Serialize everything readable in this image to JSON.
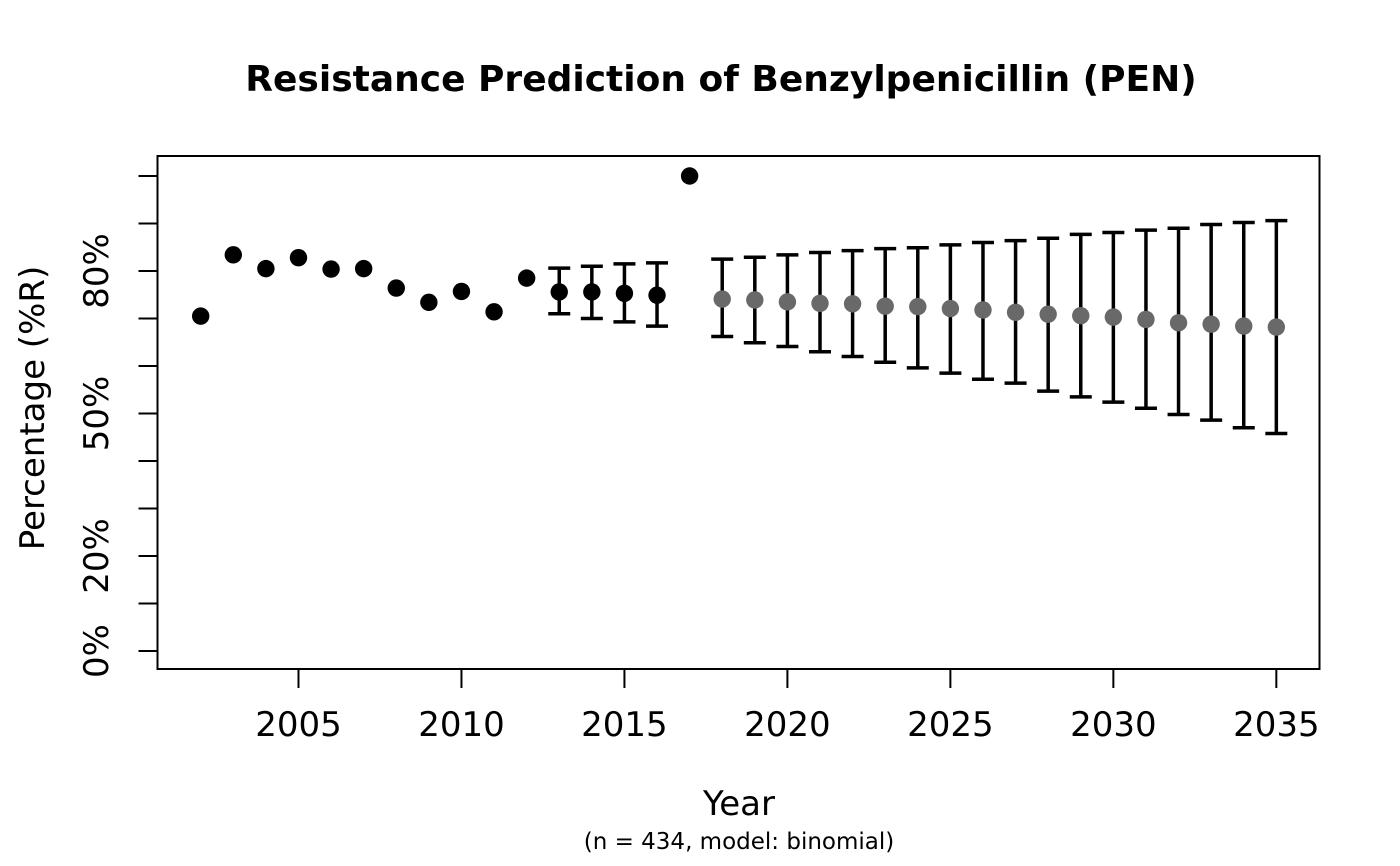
{
  "figure": {
    "background": "#ffffff"
  },
  "chart_data": {
    "type": "scatter",
    "title": "Resistance Prediction of Benzylpenicillin (PEN)",
    "xlabel": "Year",
    "ylabel": "Percentage (%R)",
    "caption": "(n = 434, model: binomial)",
    "n": 434,
    "model": "binomial",
    "xlim": [
      2002,
      2035
    ],
    "ylim": [
      0,
      100
    ],
    "grid": false,
    "legend": false,
    "x_ticks": [
      2005,
      2010,
      2015,
      2020,
      2025,
      2030,
      2035
    ],
    "y_ticks": [
      0,
      10,
      20,
      30,
      40,
      50,
      60,
      70,
      80,
      90,
      100
    ],
    "y_tick_labels": [
      {
        "value": 0,
        "label": "0%"
      },
      {
        "value": 20,
        "label": "20%"
      },
      {
        "value": 50,
        "label": "50%"
      },
      {
        "value": 80,
        "label": "80%"
      }
    ],
    "colors": {
      "observed": "#000000",
      "predicted": "#696969",
      "error_bar": "#000000",
      "axis": "#000000"
    },
    "series": [
      {
        "name": "observed",
        "marker": "filled-circle",
        "color": "#000000",
        "points": [
          {
            "year": 2002,
            "value": 70.5,
            "ci_low": null,
            "ci_high": null
          },
          {
            "year": 2003,
            "value": 83.4,
            "ci_low": null,
            "ci_high": null
          },
          {
            "year": 2004,
            "value": 80.5,
            "ci_low": null,
            "ci_high": null
          },
          {
            "year": 2005,
            "value": 82.8,
            "ci_low": null,
            "ci_high": null
          },
          {
            "year": 2006,
            "value": 80.4,
            "ci_low": null,
            "ci_high": null
          },
          {
            "year": 2007,
            "value": 80.5,
            "ci_low": null,
            "ci_high": null
          },
          {
            "year": 2008,
            "value": 76.4,
            "ci_low": null,
            "ci_high": null
          },
          {
            "year": 2009,
            "value": 73.4,
            "ci_low": null,
            "ci_high": null
          },
          {
            "year": 2010,
            "value": 75.7,
            "ci_low": null,
            "ci_high": null
          },
          {
            "year": 2011,
            "value": 71.4,
            "ci_low": null,
            "ci_high": null
          },
          {
            "year": 2012,
            "value": 78.5,
            "ci_low": null,
            "ci_high": null
          },
          {
            "year": 2013,
            "value": 75.6,
            "ci_low": 71.0,
            "ci_high": 80.6
          },
          {
            "year": 2014,
            "value": 75.6,
            "ci_low": 70.0,
            "ci_high": 81.0
          },
          {
            "year": 2015,
            "value": 75.3,
            "ci_low": 69.3,
            "ci_high": 81.5
          },
          {
            "year": 2016,
            "value": 74.9,
            "ci_low": 68.4,
            "ci_high": 81.7
          },
          {
            "year": 2017,
            "value": 100.0,
            "ci_low": null,
            "ci_high": null
          }
        ]
      },
      {
        "name": "predicted",
        "marker": "filled-circle",
        "color": "#696969",
        "points": [
          {
            "year": 2018,
            "value": 74.1,
            "ci_low": 66.2,
            "ci_high": 82.5
          },
          {
            "year": 2019,
            "value": 73.9,
            "ci_low": 64.9,
            "ci_high": 82.9
          },
          {
            "year": 2020,
            "value": 73.5,
            "ci_low": 64.1,
            "ci_high": 83.4
          },
          {
            "year": 2021,
            "value": 73.2,
            "ci_low": 63.0,
            "ci_high": 83.9
          },
          {
            "year": 2022,
            "value": 73.1,
            "ci_low": 62.0,
            "ci_high": 84.3
          },
          {
            "year": 2023,
            "value": 72.6,
            "ci_low": 60.8,
            "ci_high": 84.7
          },
          {
            "year": 2024,
            "value": 72.5,
            "ci_low": 59.6,
            "ci_high": 84.9
          },
          {
            "year": 2025,
            "value": 72.1,
            "ci_low": 58.5,
            "ci_high": 85.5
          },
          {
            "year": 2026,
            "value": 71.8,
            "ci_low": 57.2,
            "ci_high": 86.0
          },
          {
            "year": 2027,
            "value": 71.3,
            "ci_low": 56.4,
            "ci_high": 86.4
          },
          {
            "year": 2028,
            "value": 70.9,
            "ci_low": 54.7,
            "ci_high": 86.9
          },
          {
            "year": 2029,
            "value": 70.6,
            "ci_low": 53.5,
            "ci_high": 87.7
          },
          {
            "year": 2030,
            "value": 70.3,
            "ci_low": 52.4,
            "ci_high": 88.1
          },
          {
            "year": 2031,
            "value": 69.8,
            "ci_low": 51.1,
            "ci_high": 88.6
          },
          {
            "year": 2032,
            "value": 69.1,
            "ci_low": 49.8,
            "ci_high": 89.0
          },
          {
            "year": 2033,
            "value": 68.8,
            "ci_low": 48.6,
            "ci_high": 89.8
          },
          {
            "year": 2034,
            "value": 68.4,
            "ci_low": 47.0,
            "ci_high": 90.2
          },
          {
            "year": 2035,
            "value": 68.2,
            "ci_low": 45.8,
            "ci_high": 90.6
          }
        ]
      }
    ]
  }
}
